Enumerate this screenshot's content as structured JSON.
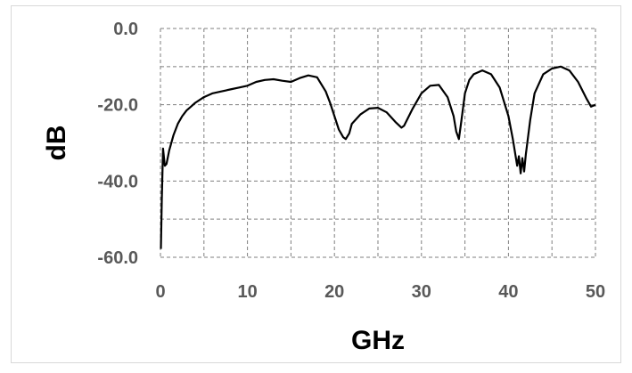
{
  "chart_data": {
    "type": "line",
    "title": "",
    "xlabel": "GHz",
    "ylabel": "dB",
    "xlim": [
      0,
      50
    ],
    "ylim": [
      -60,
      0
    ],
    "x_ticks": [
      0,
      10,
      20,
      30,
      40,
      50
    ],
    "x_tick_labels": [
      "0",
      "10",
      "20",
      "30",
      "40",
      "50"
    ],
    "y_ticks": [
      0,
      -20,
      -40,
      -60
    ],
    "y_tick_labels": [
      "0.0",
      "-20.0",
      "-40.0",
      "-60.0"
    ],
    "grid": true,
    "legend": "none",
    "line_color": "#000000",
    "series": [
      {
        "x": [
          0.05,
          0.15,
          0.3,
          0.5,
          0.7,
          1.0,
          1.5,
          2.0,
          2.5,
          3.0,
          3.5,
          4.0,
          5.0,
          6.0,
          7.0,
          8.0,
          9.0,
          10.0,
          11.0,
          12.0,
          13.0,
          14.0,
          15.0,
          16.0,
          17.0,
          18.0,
          19.0,
          19.5,
          20.0,
          20.5,
          21.0,
          21.3,
          21.7,
          22.0,
          23.0,
          24.0,
          25.0,
          26.0,
          27.0,
          27.7,
          28.0,
          29.0,
          30.0,
          31.0,
          32.0,
          33.0,
          33.7,
          34.0,
          34.3,
          34.6,
          35.0,
          35.5,
          36.0,
          37.0,
          38.0,
          39.0,
          40.0,
          40.5,
          41.0,
          41.2,
          41.4,
          41.6,
          41.8,
          42.0,
          42.5,
          43.0,
          44.0,
          45.0,
          46.0,
          47.0,
          48.0,
          49.0,
          49.5,
          50.0
        ],
        "y": [
          -57.8,
          -45.0,
          -31.5,
          -36.0,
          -35.5,
          -32.0,
          -28.0,
          -25.0,
          -23.0,
          -21.5,
          -20.5,
          -19.5,
          -18.0,
          -17.0,
          -16.5,
          -16.0,
          -15.5,
          -15.0,
          -14.0,
          -13.5,
          -13.3,
          -13.7,
          -14.0,
          -13.0,
          -12.3,
          -12.8,
          -16.5,
          -19.5,
          -23.0,
          -26.5,
          -28.5,
          -29.0,
          -27.5,
          -25.0,
          -22.5,
          -21.0,
          -20.8,
          -22.0,
          -24.5,
          -26.0,
          -25.5,
          -21.0,
          -17.0,
          -15.0,
          -14.8,
          -18.0,
          -23.0,
          -27.0,
          -29.0,
          -24.0,
          -17.0,
          -13.5,
          -12.0,
          -11.0,
          -12.0,
          -15.5,
          -23.0,
          -29.0,
          -36.0,
          -33.5,
          -38.0,
          -34.0,
          -37.5,
          -33.0,
          -24.0,
          -17.0,
          -12.0,
          -10.5,
          -10.0,
          -11.0,
          -14.0,
          -18.5,
          -20.5,
          -20.0
        ]
      }
    ]
  }
}
